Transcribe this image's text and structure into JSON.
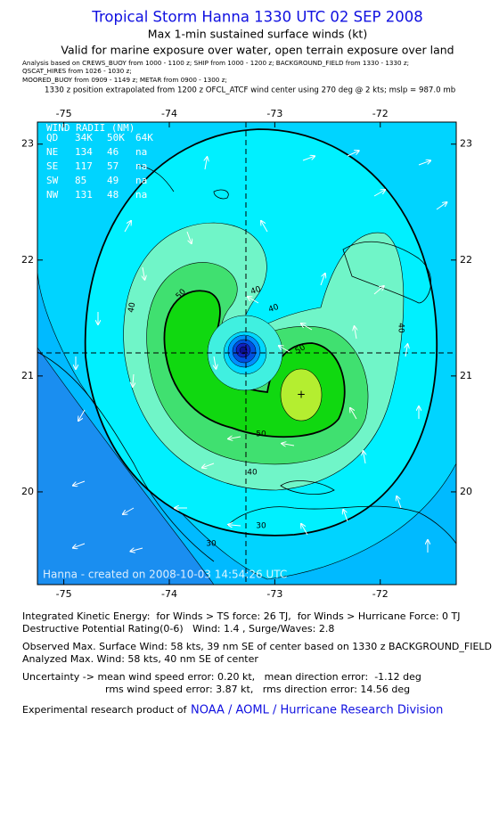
{
  "header": {
    "title": "Tropical Storm Hanna 1330 UTC 02 SEP 2008",
    "subtitle": "Max 1-min sustained surface winds (kt)",
    "validity": "Valid for marine exposure over water, open terrain exposure over land",
    "sources": [
      "Analysis based on  CREWS_BUOY from 1000 - 1100 z;  SHIP from 1000 - 1200 z;  BACKGROUND_FIELD from 1330 - 1330 z;",
      "QSCAT_HIRES from 1026 - 1030 z;",
      "MOORED_BUOY from 0909 - 1149 z;  METAR from 0900 - 1300 z;"
    ],
    "position_note": "1330 z position extrapolated from 1200 z OFCL_ATCF wind center using 270 deg @ 2 kts; mslp = 987.0 mb"
  },
  "map": {
    "xlim": [
      -75.25,
      -71.28
    ],
    "ylim": [
      19.2,
      23.19
    ],
    "xticks": [
      -75,
      -74,
      -73,
      -72
    ],
    "yticks": [
      20,
      21,
      22,
      23
    ],
    "contour_labels": [
      "40",
      "50",
      "40",
      "40",
      "50",
      "40",
      "50",
      "40",
      "30",
      "30"
    ],
    "wind_radii": {
      "title": "WIND RADII (NM)",
      "header": [
        "QD",
        "34K",
        "50K",
        "64K"
      ],
      "rows": [
        [
          "NE",
          "134",
          "46",
          "na"
        ],
        [
          "SE",
          "117",
          "57",
          "na"
        ],
        [
          "SW",
          "85",
          "49",
          "na"
        ],
        [
          "NW",
          "131",
          "48",
          "na"
        ]
      ]
    },
    "watermark": "Hanna - created on 2008-10-03 14:54:26 UTC"
  },
  "footer": {
    "lines": [
      "Integrated Kinetic Energy:  for Winds > TS force: 26 TJ,  for Winds > Hurricane Force: 0 TJ",
      "Destructive Potential Rating(0-6)   Wind: 1.4 , Surge/Waves: 2.8",
      "Observed Max. Surface Wind: 58 kts, 39 nm SE of center based on 1330 z BACKGROUND_FIELD",
      "Analyzed Max. Wind: 58 kts, 40 nm SE of center",
      "Uncertainty -> mean wind speed error: 0.20 kt,   mean direction error:  -1.12 deg",
      "rms wind speed error: 3.87 kt,   rms direction error: 14.56 deg"
    ],
    "credit": "Experimental research product of",
    "credit_link": "NOAA / AOML / Hurricane Research Division"
  }
}
